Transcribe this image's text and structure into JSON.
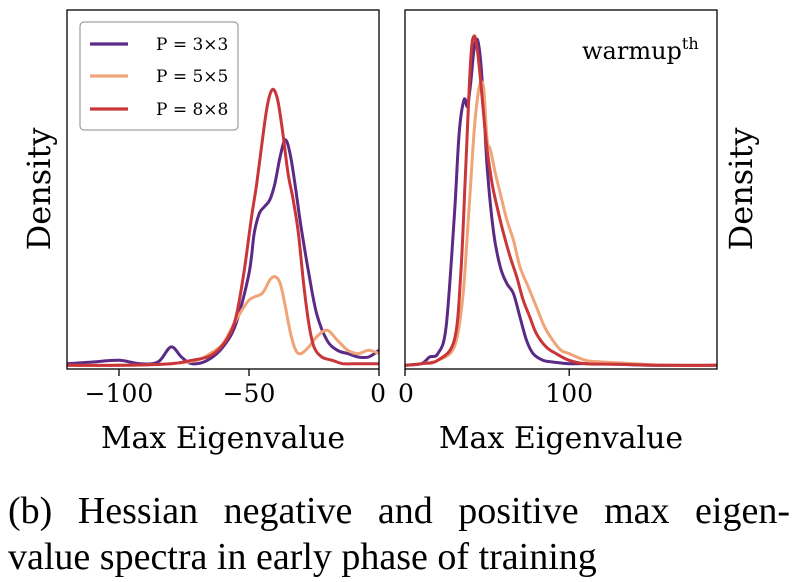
{
  "chart_data": [
    {
      "type": "line",
      "ylabel": "Density",
      "xlabel": "Max Eigenvalue",
      "xlim": [
        -120,
        0
      ],
      "xticks": [
        {
          "value": -100,
          "label": "−100"
        },
        {
          "value": -50,
          "label": "−50"
        },
        {
          "value": 0,
          "label": "0"
        }
      ],
      "legend": {
        "placement": "top-left"
      },
      "series": [
        {
          "name": "P = 3×3",
          "color": "#5b2a86",
          "x": [
            -120,
            -110,
            -100,
            -92,
            -85,
            -80,
            -76,
            -72,
            -66,
            -60,
            -55,
            -50,
            -48,
            -46,
            -44,
            -42,
            -40,
            -38,
            -36,
            -34,
            -32,
            -30,
            -27,
            -24,
            -20,
            -16,
            -12,
            -8,
            -4,
            0
          ],
          "y": [
            0.01,
            0.015,
            0.02,
            0.01,
            0.015,
            0.06,
            0.03,
            0.01,
            0.02,
            0.06,
            0.13,
            0.28,
            0.4,
            0.46,
            0.48,
            0.5,
            0.55,
            0.63,
            0.68,
            0.63,
            0.53,
            0.42,
            0.28,
            0.16,
            0.08,
            0.05,
            0.04,
            0.03,
            0.03,
            0.05
          ]
        },
        {
          "name": "P = 5×5",
          "color": "#f0a477",
          "x": [
            -120,
            -100,
            -80,
            -70,
            -65,
            -60,
            -55,
            -50,
            -45,
            -42,
            -40,
            -38,
            -36,
            -34,
            -32,
            -30,
            -27,
            -24,
            -20,
            -16,
            -12,
            -8,
            -4,
            0
          ],
          "y": [
            0.005,
            0.005,
            0.01,
            0.02,
            0.04,
            0.07,
            0.14,
            0.2,
            0.22,
            0.26,
            0.27,
            0.25,
            0.18,
            0.1,
            0.05,
            0.04,
            0.06,
            0.09,
            0.11,
            0.08,
            0.05,
            0.04,
            0.05,
            0.04
          ]
        },
        {
          "name": "P = 8×8",
          "color": "#c8363a",
          "x": [
            -120,
            -100,
            -80,
            -72,
            -66,
            -62,
            -58,
            -55,
            -52,
            -49,
            -47,
            -45,
            -43,
            -41,
            -39,
            -37,
            -35,
            -33,
            -31,
            -29,
            -27,
            -25,
            -22,
            -18,
            -14,
            -10,
            -5,
            0
          ],
          "y": [
            0.005,
            0.005,
            0.01,
            0.02,
            0.03,
            0.05,
            0.09,
            0.15,
            0.28,
            0.45,
            0.55,
            0.67,
            0.78,
            0.83,
            0.8,
            0.7,
            0.58,
            0.5,
            0.4,
            0.25,
            0.13,
            0.06,
            0.03,
            0.02,
            0.01,
            0.01,
            0.01,
            0.01
          ]
        }
      ]
    },
    {
      "type": "line",
      "ylabel": "Density",
      "xlabel": "Max Eigenvalue",
      "annotation": "warmup",
      "annotation_sup": "th",
      "xlim": [
        0,
        190
      ],
      "xticks": [
        {
          "value": 0,
          "label": "0"
        },
        {
          "value": 100,
          "label": "100"
        }
      ],
      "series": [
        {
          "name": "P = 3×3",
          "color": "#5b2a86",
          "x": [
            0,
            10,
            15,
            20,
            25,
            30,
            33,
            36,
            38,
            40,
            42,
            44,
            46,
            48,
            50,
            54,
            58,
            62,
            66,
            70,
            74,
            78,
            84,
            90,
            100,
            120,
            150,
            190
          ],
          "y": [
            0.005,
            0.01,
            0.03,
            0.04,
            0.12,
            0.45,
            0.7,
            0.8,
            0.78,
            0.85,
            0.95,
            0.98,
            0.92,
            0.78,
            0.6,
            0.4,
            0.3,
            0.25,
            0.22,
            0.15,
            0.08,
            0.04,
            0.02,
            0.015,
            0.01,
            0.01,
            0.005,
            0.005
          ]
        },
        {
          "name": "P = 5×5",
          "color": "#f0a477",
          "x": [
            0,
            10,
            20,
            30,
            35,
            38,
            40,
            42,
            44,
            46,
            48,
            50,
            52,
            55,
            58,
            62,
            66,
            70,
            75,
            80,
            85,
            90,
            95,
            100,
            110,
            120,
            140,
            160,
            190
          ],
          "y": [
            0.005,
            0.01,
            0.02,
            0.06,
            0.2,
            0.4,
            0.55,
            0.7,
            0.8,
            0.85,
            0.83,
            0.68,
            0.65,
            0.58,
            0.52,
            0.44,
            0.38,
            0.3,
            0.24,
            0.18,
            0.12,
            0.08,
            0.05,
            0.04,
            0.02,
            0.015,
            0.01,
            0.005,
            0.005
          ]
        },
        {
          "name": "P = 8×8",
          "color": "#c8363a",
          "x": [
            0,
            10,
            20,
            30,
            34,
            37,
            40,
            42,
            44,
            46,
            48,
            50,
            53,
            56,
            60,
            64,
            68,
            72,
            76,
            80,
            86,
            92,
            100,
            110,
            130,
            160,
            190
          ],
          "y": [
            0.005,
            0.01,
            0.02,
            0.08,
            0.28,
            0.6,
            0.92,
            0.99,
            0.95,
            0.86,
            0.75,
            0.65,
            0.55,
            0.48,
            0.4,
            0.33,
            0.27,
            0.2,
            0.15,
            0.1,
            0.06,
            0.04,
            0.02,
            0.01,
            0.008,
            0.005,
            0.005
          ]
        }
      ]
    }
  ],
  "caption": {
    "line1": "(b) Hessian negative and positive max eigen-",
    "line2": "value spectra in early phase of training"
  }
}
